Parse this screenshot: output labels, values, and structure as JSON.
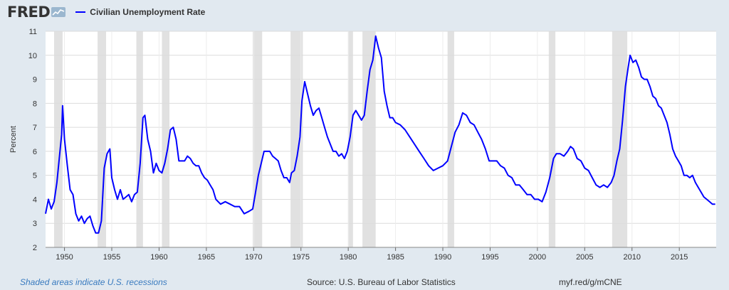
{
  "logo": {
    "text": "FRED"
  },
  "colors": {
    "series": "#0000ff",
    "recession": "#e1e1e1",
    "plot_bg": "#ffffff",
    "page_bg": "#e1e9f0",
    "note": "#3a7bbf"
  },
  "footer": {
    "note": "Shaded areas indicate U.S. recessions",
    "source": "Source: U.S. Bureau of Labor Statistics",
    "link": "myf.red/g/mCNE"
  },
  "chart_data": {
    "type": "line",
    "title": "",
    "xlabel": "",
    "ylabel": "Percent",
    "xlim": [
      1948.0,
      2018.9
    ],
    "ylim": [
      2,
      11
    ],
    "yticks": [
      2,
      3,
      4,
      5,
      6,
      7,
      8,
      9,
      10,
      11
    ],
    "xticks": [
      1950,
      1955,
      1960,
      1965,
      1970,
      1975,
      1980,
      1985,
      1990,
      1995,
      2000,
      2005,
      2010,
      2015
    ],
    "grid": true,
    "legend_position": "top-left",
    "recessions": [
      [
        1948.9,
        1949.8
      ],
      [
        1953.5,
        1954.4
      ],
      [
        1957.6,
        1958.3
      ],
      [
        1960.3,
        1961.1
      ],
      [
        1969.9,
        1970.9
      ],
      [
        1973.9,
        1975.2
      ],
      [
        1980.0,
        1980.5
      ],
      [
        1981.5,
        1982.9
      ],
      [
        1990.5,
        1991.2
      ],
      [
        2001.2,
        2001.9
      ],
      [
        2007.9,
        2009.5
      ]
    ],
    "series": [
      {
        "name": "Civilian Unemployment Rate",
        "x": [
          1948.0,
          1948.3,
          1948.6,
          1948.9,
          1949.2,
          1949.5,
          1949.7,
          1949.8,
          1950.0,
          1950.3,
          1950.6,
          1950.9,
          1951.2,
          1951.5,
          1951.8,
          1952.1,
          1952.4,
          1952.7,
          1953.0,
          1953.3,
          1953.6,
          1953.9,
          1954.2,
          1954.5,
          1954.8,
          1955.0,
          1955.3,
          1955.6,
          1955.9,
          1956.2,
          1956.5,
          1956.8,
          1957.1,
          1957.4,
          1957.7,
          1958.0,
          1958.3,
          1958.5,
          1958.8,
          1959.1,
          1959.4,
          1959.7,
          1960.0,
          1960.3,
          1960.6,
          1960.9,
          1961.2,
          1961.5,
          1961.8,
          1962.1,
          1962.4,
          1962.7,
          1963.0,
          1963.3,
          1963.6,
          1963.9,
          1964.2,
          1964.5,
          1964.8,
          1965.1,
          1965.4,
          1965.7,
          1966.0,
          1966.5,
          1967.0,
          1967.5,
          1968.0,
          1968.5,
          1969.0,
          1969.5,
          1969.9,
          1970.2,
          1970.5,
          1970.8,
          1971.1,
          1971.4,
          1971.7,
          1972.0,
          1972.3,
          1972.6,
          1972.9,
          1973.2,
          1973.5,
          1973.8,
          1974.0,
          1974.3,
          1974.6,
          1974.9,
          1975.1,
          1975.4,
          1975.7,
          1976.0,
          1976.3,
          1976.6,
          1976.9,
          1977.2,
          1977.5,
          1977.8,
          1978.1,
          1978.4,
          1978.7,
          1979.0,
          1979.3,
          1979.6,
          1979.9,
          1980.2,
          1980.5,
          1980.8,
          1981.1,
          1981.4,
          1981.7,
          1982.0,
          1982.3,
          1982.6,
          1982.9,
          1983.2,
          1983.5,
          1983.8,
          1984.1,
          1984.4,
          1984.7,
          1985.0,
          1985.5,
          1986.0,
          1986.5,
          1987.0,
          1987.5,
          1988.0,
          1988.5,
          1989.0,
          1989.5,
          1990.0,
          1990.5,
          1990.9,
          1991.3,
          1991.7,
          1992.1,
          1992.5,
          1992.9,
          1993.3,
          1993.7,
          1994.1,
          1994.5,
          1994.9,
          1995.3,
          1995.7,
          1996.1,
          1996.5,
          1996.9,
          1997.3,
          1997.7,
          1998.1,
          1998.5,
          1998.9,
          1999.3,
          1999.7,
          2000.1,
          2000.5,
          2000.9,
          2001.3,
          2001.7,
          2002.0,
          2002.4,
          2002.8,
          2003.2,
          2003.5,
          2003.8,
          2004.2,
          2004.6,
          2005.0,
          2005.4,
          2005.8,
          2006.2,
          2006.6,
          2007.0,
          2007.4,
          2007.8,
          2008.1,
          2008.4,
          2008.7,
          2009.0,
          2009.3,
          2009.6,
          2009.8,
          2010.1,
          2010.4,
          2010.7,
          2011.0,
          2011.3,
          2011.6,
          2011.9,
          2012.2,
          2012.5,
          2012.8,
          2013.1,
          2013.4,
          2013.7,
          2014.0,
          2014.3,
          2014.6,
          2014.9,
          2015.2,
          2015.5,
          2015.8,
          2016.1,
          2016.4,
          2016.7,
          2017.0,
          2017.3,
          2017.6,
          2017.9,
          2018.2,
          2018.5,
          2018.8
        ],
        "values": [
          3.4,
          4.0,
          3.6,
          3.9,
          4.7,
          5.9,
          6.7,
          7.9,
          6.5,
          5.4,
          4.4,
          4.2,
          3.4,
          3.1,
          3.3,
          3.0,
          3.2,
          3.3,
          2.9,
          2.6,
          2.6,
          3.1,
          5.3,
          5.9,
          6.1,
          4.9,
          4.4,
          4.0,
          4.4,
          4.0,
          4.1,
          4.2,
          3.9,
          4.2,
          4.3,
          5.5,
          7.4,
          7.5,
          6.5,
          6.0,
          5.1,
          5.5,
          5.2,
          5.1,
          5.5,
          6.1,
          6.9,
          7.0,
          6.5,
          5.6,
          5.6,
          5.6,
          5.8,
          5.7,
          5.5,
          5.4,
          5.4,
          5.1,
          4.9,
          4.8,
          4.6,
          4.4,
          4.0,
          3.8,
          3.9,
          3.8,
          3.7,
          3.7,
          3.4,
          3.5,
          3.6,
          4.3,
          5.0,
          5.5,
          6.0,
          6.0,
          6.0,
          5.8,
          5.7,
          5.6,
          5.2,
          4.9,
          4.9,
          4.7,
          5.1,
          5.2,
          5.8,
          6.6,
          8.1,
          8.9,
          8.4,
          7.9,
          7.5,
          7.7,
          7.8,
          7.4,
          7.0,
          6.6,
          6.3,
          6.0,
          6.0,
          5.8,
          5.9,
          5.7,
          6.0,
          6.6,
          7.5,
          7.7,
          7.5,
          7.3,
          7.5,
          8.5,
          9.4,
          9.8,
          10.8,
          10.3,
          9.9,
          8.5,
          7.9,
          7.4,
          7.4,
          7.2,
          7.1,
          6.9,
          6.6,
          6.3,
          6.0,
          5.7,
          5.4,
          5.2,
          5.3,
          5.4,
          5.6,
          6.2,
          6.8,
          7.1,
          7.6,
          7.5,
          7.2,
          7.1,
          6.8,
          6.5,
          6.1,
          5.6,
          5.6,
          5.6,
          5.4,
          5.3,
          5.0,
          4.9,
          4.6,
          4.6,
          4.4,
          4.2,
          4.2,
          4.0,
          4.0,
          3.9,
          4.3,
          4.9,
          5.7,
          5.9,
          5.9,
          5.8,
          6.0,
          6.2,
          6.1,
          5.7,
          5.6,
          5.3,
          5.2,
          4.9,
          4.6,
          4.5,
          4.6,
          4.5,
          4.7,
          5.0,
          5.6,
          6.1,
          7.3,
          8.7,
          9.5,
          10.0,
          9.7,
          9.8,
          9.5,
          9.1,
          9.0,
          9.0,
          8.7,
          8.3,
          8.2,
          7.9,
          7.8,
          7.5,
          7.2,
          6.7,
          6.1,
          5.8,
          5.6,
          5.4,
          5.0,
          5.0,
          4.9,
          5.0,
          4.7,
          4.5,
          4.3,
          4.1,
          4.0,
          3.9,
          3.8,
          3.8
        ]
      }
    ]
  }
}
